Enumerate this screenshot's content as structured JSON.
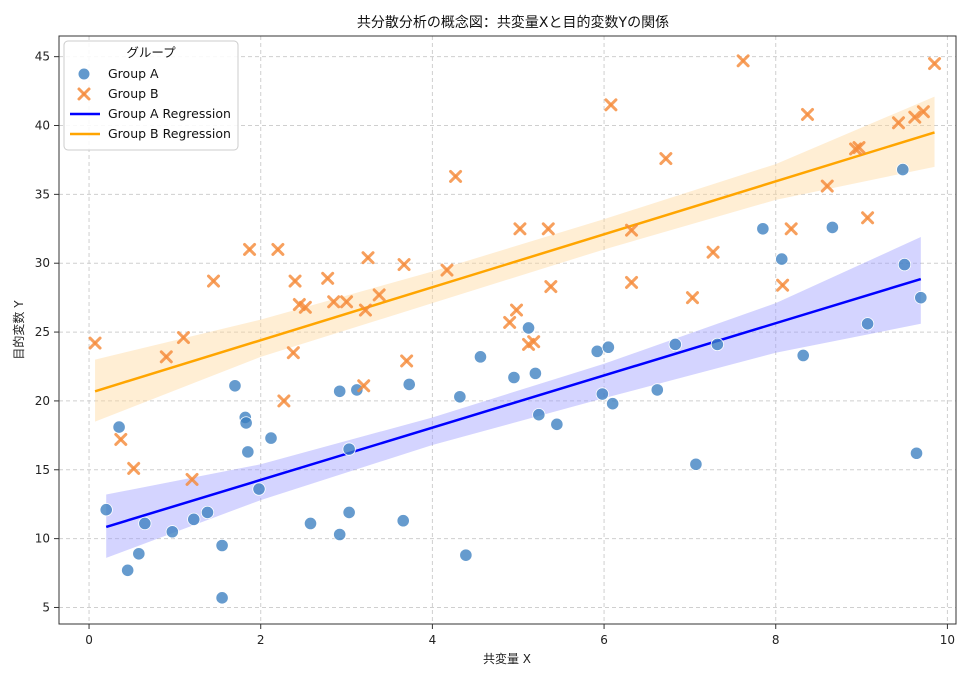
{
  "chart_data": {
    "type": "scatter",
    "title": "共分散分析の概念図：共変量Xと目的変数Yの関係",
    "xlabel": "共変量 X",
    "ylabel": "目的変数 Y",
    "xlim": [
      -0.35,
      10.1
    ],
    "ylim": [
      3.8,
      46.5
    ],
    "xticks": [
      0,
      2,
      4,
      6,
      8,
      10
    ],
    "yticks": [
      5,
      10,
      15,
      20,
      25,
      30,
      35,
      40,
      45
    ],
    "grid": true,
    "legend": {
      "title": "グループ",
      "position": "top-left",
      "entries": [
        "Group A",
        "Group B",
        "Group A Regression",
        "Group B Regression"
      ]
    },
    "colors": {
      "group_a": "#3b7fc0",
      "group_b": "#f58b3b",
      "reg_a": "#0000ff",
      "reg_b": "#ffa500",
      "band_a": "#9999ff",
      "band_b": "#ffd699"
    },
    "series": [
      {
        "name": "Group A",
        "marker": "circle",
        "points": [
          [
            0.2,
            12.1
          ],
          [
            0.35,
            18.1
          ],
          [
            0.45,
            7.7
          ],
          [
            0.58,
            8.9
          ],
          [
            0.65,
            11.1
          ],
          [
            0.97,
            10.5
          ],
          [
            1.22,
            11.4
          ],
          [
            1.38,
            11.9
          ],
          [
            1.55,
            9.5
          ],
          [
            1.55,
            5.7
          ],
          [
            1.7,
            21.1
          ],
          [
            1.82,
            18.8
          ],
          [
            1.83,
            18.4
          ],
          [
            1.85,
            16.3
          ],
          [
            1.98,
            13.6
          ],
          [
            2.12,
            17.3
          ],
          [
            2.58,
            11.1
          ],
          [
            2.92,
            20.7
          ],
          [
            2.92,
            10.3
          ],
          [
            3.03,
            16.5
          ],
          [
            3.03,
            11.9
          ],
          [
            3.12,
            20.8
          ],
          [
            3.66,
            11.3
          ],
          [
            3.73,
            21.2
          ],
          [
            4.32,
            20.3
          ],
          [
            4.39,
            8.8
          ],
          [
            4.56,
            23.2
          ],
          [
            4.95,
            21.7
          ],
          [
            5.12,
            25.3
          ],
          [
            5.2,
            22.0
          ],
          [
            5.24,
            19.0
          ],
          [
            5.45,
            18.3
          ],
          [
            5.92,
            23.6
          ],
          [
            5.98,
            20.5
          ],
          [
            6.05,
            23.9
          ],
          [
            6.1,
            19.8
          ],
          [
            6.62,
            20.8
          ],
          [
            6.83,
            24.1
          ],
          [
            7.07,
            15.4
          ],
          [
            7.32,
            24.1
          ],
          [
            7.85,
            32.5
          ],
          [
            8.07,
            30.3
          ],
          [
            8.32,
            23.3
          ],
          [
            8.66,
            32.6
          ],
          [
            9.07,
            25.6
          ],
          [
            9.48,
            36.8
          ],
          [
            9.5,
            29.9
          ],
          [
            9.64,
            16.2
          ],
          [
            9.69,
            27.5
          ]
        ]
      },
      {
        "name": "Group B",
        "marker": "x",
        "points": [
          [
            0.07,
            24.2
          ],
          [
            0.37,
            17.2
          ],
          [
            0.52,
            15.1
          ],
          [
            0.9,
            23.2
          ],
          [
            1.1,
            24.6
          ],
          [
            1.2,
            14.3
          ],
          [
            1.45,
            28.7
          ],
          [
            1.87,
            31.0
          ],
          [
            2.2,
            31.0
          ],
          [
            2.27,
            20.0
          ],
          [
            2.38,
            23.5
          ],
          [
            2.4,
            28.7
          ],
          [
            2.45,
            27.0
          ],
          [
            2.52,
            26.8
          ],
          [
            2.78,
            28.9
          ],
          [
            2.85,
            27.2
          ],
          [
            3.0,
            27.2
          ],
          [
            3.2,
            21.1
          ],
          [
            3.22,
            26.6
          ],
          [
            3.25,
            30.4
          ],
          [
            3.38,
            27.7
          ],
          [
            3.67,
            29.9
          ],
          [
            3.7,
            22.9
          ],
          [
            4.17,
            29.5
          ],
          [
            4.27,
            36.3
          ],
          [
            4.9,
            25.7
          ],
          [
            4.98,
            26.6
          ],
          [
            5.02,
            32.5
          ],
          [
            5.12,
            24.1
          ],
          [
            5.18,
            24.3
          ],
          [
            5.35,
            32.5
          ],
          [
            5.38,
            28.3
          ],
          [
            6.08,
            41.5
          ],
          [
            6.32,
            32.4
          ],
          [
            6.32,
            28.6
          ],
          [
            6.72,
            37.6
          ],
          [
            7.03,
            27.5
          ],
          [
            7.27,
            30.8
          ],
          [
            7.62,
            44.7
          ],
          [
            8.08,
            28.4
          ],
          [
            8.18,
            32.5
          ],
          [
            8.37,
            40.8
          ],
          [
            8.6,
            35.6
          ],
          [
            8.93,
            38.3
          ],
          [
            8.97,
            38.4
          ],
          [
            9.07,
            33.3
          ],
          [
            9.43,
            40.2
          ],
          [
            9.62,
            40.6
          ],
          [
            9.72,
            41.0
          ],
          [
            9.85,
            44.5
          ]
        ]
      }
    ],
    "regressions": [
      {
        "name": "Group A Regression",
        "x": [
          0.2,
          9.69
        ],
        "y": [
          10.85,
          28.85
        ],
        "band": {
          "x": [
            0.2,
            2.0,
            4.0,
            6.0,
            8.0,
            9.69
          ],
          "lower": [
            8.6,
            12.8,
            16.8,
            20.2,
            23.5,
            25.6
          ],
          "upper": [
            13.2,
            15.4,
            18.8,
            22.7,
            27.1,
            31.9
          ]
        }
      },
      {
        "name": "Group B Regression",
        "x": [
          0.07,
          9.85
        ],
        "y": [
          20.7,
          39.5
        ],
        "band": {
          "x": [
            0.07,
            2.0,
            4.0,
            6.0,
            8.0,
            9.85
          ],
          "lower": [
            18.5,
            23.2,
            27.1,
            31.0,
            34.6,
            37.0
          ],
          "upper": [
            23.0,
            25.9,
            29.4,
            33.2,
            37.2,
            42.1
          ]
        }
      }
    ]
  }
}
